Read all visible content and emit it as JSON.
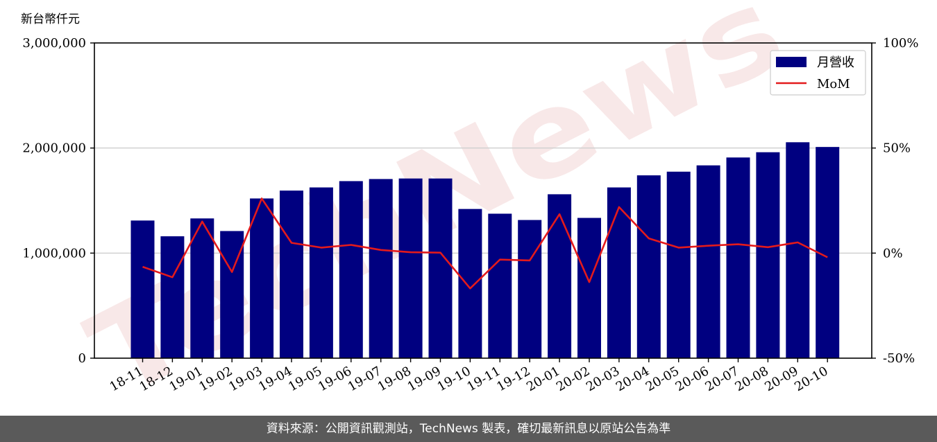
{
  "chart_data": {
    "type": "bar",
    "y_unit": "新台幣仟元",
    "categories": [
      "18-11",
      "18-12",
      "19-01",
      "19-02",
      "19-03",
      "19-04",
      "19-05",
      "19-06",
      "19-07",
      "19-08",
      "19-09",
      "19-10",
      "19-11",
      "19-12",
      "20-01",
      "20-02",
      "20-03",
      "20-04",
      "20-05",
      "20-06",
      "20-07",
      "20-08",
      "20-09",
      "20-10"
    ],
    "series": [
      {
        "name": "月營收",
        "type": "bar",
        "axis": "left",
        "color": "#000080",
        "values": [
          1310000,
          1160000,
          1330000,
          1210000,
          1520000,
          1595000,
          1625000,
          1685000,
          1705000,
          1710000,
          1710000,
          1420000,
          1375000,
          1315000,
          1560000,
          1335000,
          1625000,
          1740000,
          1775000,
          1835000,
          1910000,
          1960000,
          2055000,
          2010000
        ]
      },
      {
        "name": "MoM",
        "type": "line",
        "axis": "right",
        "color": "#e31a1c",
        "values": [
          -6.5,
          -11.5,
          15.0,
          -9.0,
          26.0,
          4.9,
          2.6,
          3.9,
          1.5,
          0.4,
          0.2,
          -16.8,
          -3.1,
          -3.5,
          18.5,
          -13.8,
          21.9,
          7.0,
          2.6,
          3.5,
          4.2,
          2.8,
          5.1,
          -2.0
        ]
      }
    ],
    "ylim_left": [
      0,
      3000000
    ],
    "yticks_left": [
      0,
      1000000,
      2000000,
      3000000
    ],
    "yticklabels_left": [
      "0",
      "1,000,000",
      "2,000,000",
      "3,000,000"
    ],
    "ylim_right": [
      -50,
      100
    ],
    "yticks_right": [
      -50,
      0,
      50,
      100
    ],
    "yticklabels_right": [
      "-50%",
      "0%",
      "50%",
      "100%"
    ],
    "grid": "horizontal",
    "legend_position": "top-right",
    "watermark": "TechNews"
  },
  "footer": {
    "source_text": "資料來源：公開資訊觀測站，TechNews 製表，確切最新訊息以原站公告為準"
  }
}
